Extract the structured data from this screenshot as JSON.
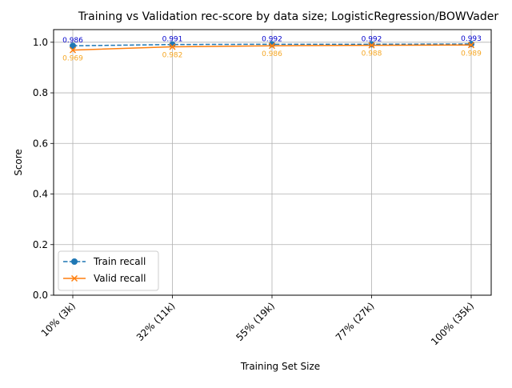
{
  "chart_data": {
    "type": "line",
    "title": "Training vs Validation rec-score by data size; LogisticRegression/BOWVader",
    "xlabel": "Training Set Size",
    "ylabel": "Score",
    "categories": [
      "10% (3k)",
      "32% (11k)",
      "55% (19k)",
      "77% (27k)",
      "100% (35k)"
    ],
    "ylim": [
      0,
      1.05
    ],
    "yticks": [
      "0.0",
      "0.2",
      "0.4",
      "0.6",
      "0.8",
      "1.0"
    ],
    "grid": true,
    "legend_position": "lower-left",
    "series": [
      {
        "name": "Train recall",
        "values": [
          0.986,
          0.991,
          0.992,
          0.992,
          0.993
        ],
        "labels": [
          "0.986",
          "0.991",
          "0.992",
          "0.992",
          "0.993"
        ],
        "color": "#1f77b4",
        "label_color": "#0000cc",
        "line_style": "dashed",
        "marker": "circle"
      },
      {
        "name": "Valid recall",
        "values": [
          0.969,
          0.982,
          0.986,
          0.988,
          0.989
        ],
        "labels": [
          "0.969",
          "0.982",
          "0.986",
          "0.988",
          "0.989"
        ],
        "color": "#ff7f0e",
        "label_color": "#f5a623",
        "line_style": "solid",
        "marker": "x"
      }
    ]
  }
}
